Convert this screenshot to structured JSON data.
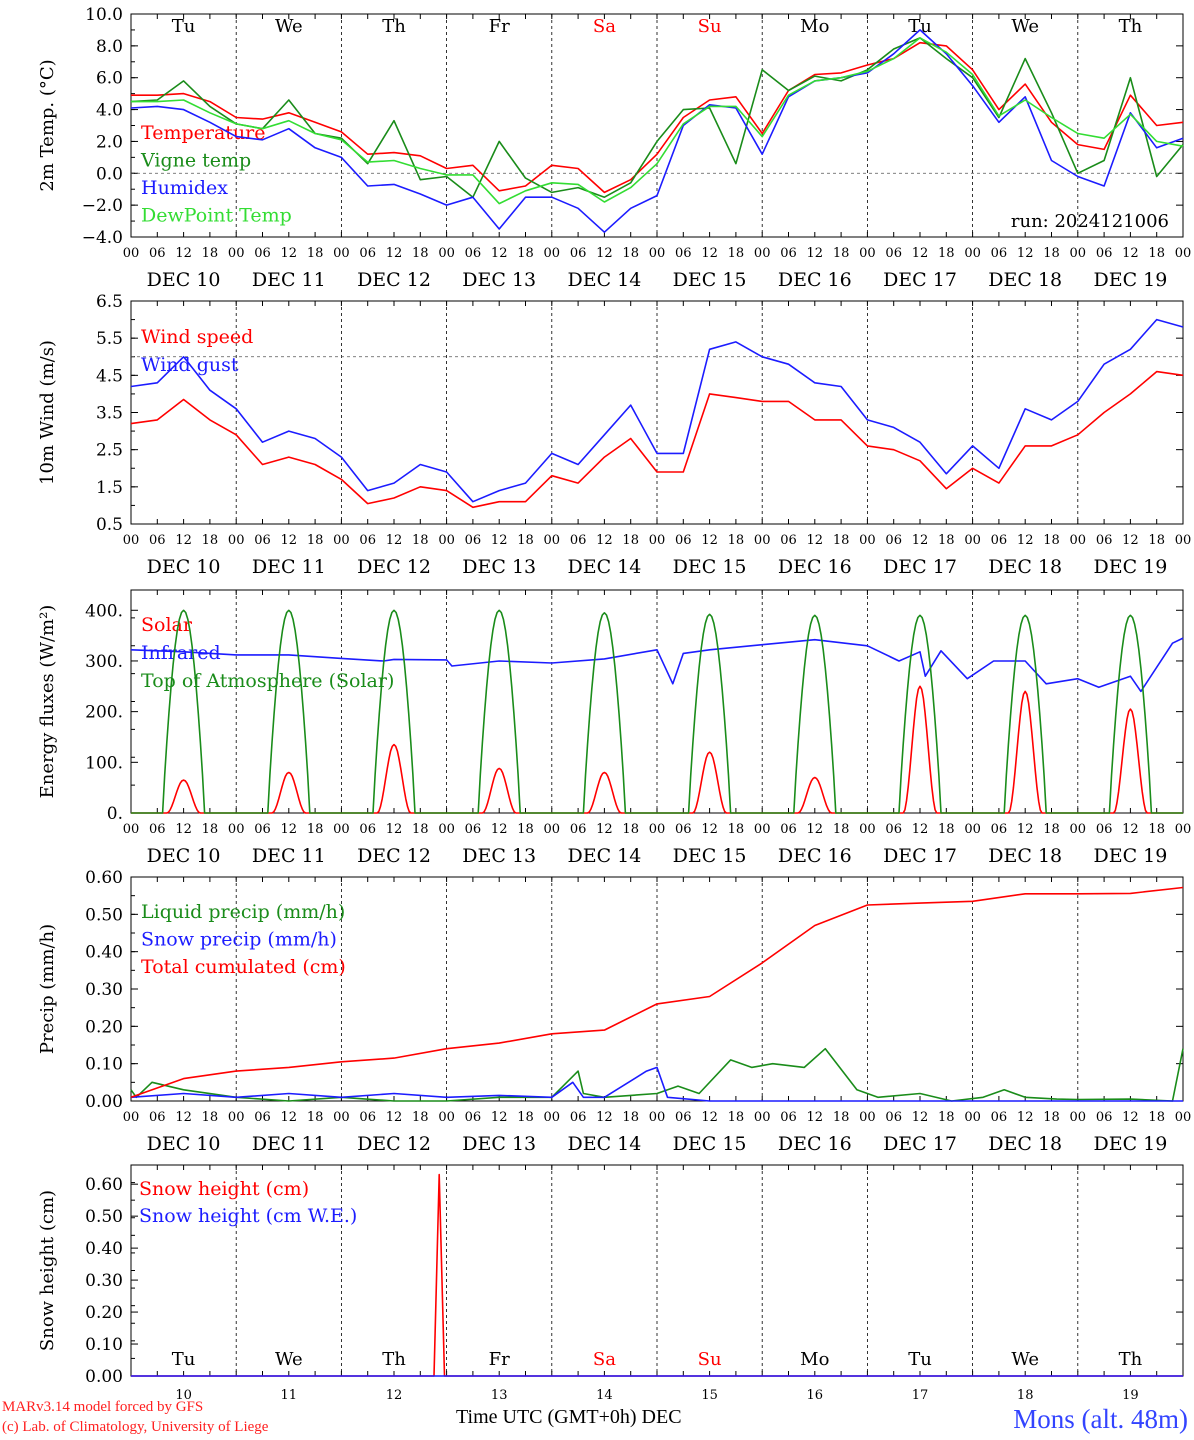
{
  "colors": {
    "red": "#ff0000",
    "green": "#1a8c1a",
    "blue": "#1c1cff",
    "lightgreen": "#33dd33",
    "grid": "#000000"
  },
  "days": [
    {
      "weekday": "Tu",
      "date": "DEC 10",
      "num": "10",
      "weekday_color": "#000000"
    },
    {
      "weekday": "We",
      "date": "DEC 11",
      "num": "11",
      "weekday_color": "#000000"
    },
    {
      "weekday": "Th",
      "date": "DEC 12",
      "num": "12",
      "weekday_color": "#000000"
    },
    {
      "weekday": "Fr",
      "date": "DEC 13",
      "num": "13",
      "weekday_color": "#000000"
    },
    {
      "weekday": "Sa",
      "date": "DEC 14",
      "num": "14",
      "weekday_color": "#ff0000"
    },
    {
      "weekday": "Su",
      "date": "DEC 15",
      "num": "15",
      "weekday_color": "#ff0000"
    },
    {
      "weekday": "Mo",
      "date": "DEC 16",
      "num": "16",
      "weekday_color": "#000000"
    },
    {
      "weekday": "Tu",
      "date": "DEC 17",
      "num": "17",
      "weekday_color": "#000000"
    },
    {
      "weekday": "We",
      "date": "DEC 18",
      "num": "18",
      "weekday_color": "#000000"
    },
    {
      "weekday": "Th",
      "date": "DEC 19",
      "num": "19",
      "weekday_color": "#000000"
    }
  ],
  "hour_ticks": [
    "00",
    "06",
    "12",
    "18"
  ],
  "footer": {
    "credit_line1": "MARv3.14 model forced by GFS",
    "credit_line2": "(c) Lab. of Climatology, University of Liege",
    "axis_label": "Time UTC (GMT+0h) DEC",
    "location": "Mons (alt. 48m)"
  },
  "chart_data": [
    {
      "type": "line",
      "ylabel": "2m Temp. (°C)",
      "ylim": [
        -4,
        10
      ],
      "yticks": [
        "10.0",
        "8.0",
        "6.0",
        "4.0",
        "2.0",
        "0.0",
        "−2.0",
        "−4.0"
      ],
      "ytick_values": [
        10,
        8,
        6,
        4,
        2,
        0,
        -2,
        -4
      ],
      "ref_line": 0,
      "annotation": "run: 2024121006",
      "x_unit": "day offset from DEC 10 00 UTC",
      "series": [
        {
          "name": "Temperature",
          "color": "#ff0000",
          "x": [
            0,
            0.25,
            0.5,
            0.75,
            1,
            1.25,
            1.5,
            1.75,
            2,
            2.25,
            2.5,
            2.75,
            3,
            3.25,
            3.5,
            3.75,
            4,
            4.25,
            4.5,
            4.75,
            5,
            5.25,
            5.5,
            5.75,
            6,
            6.25,
            6.5,
            6.75,
            7,
            7.25,
            7.5,
            7.75,
            8,
            8.25,
            8.5,
            8.75,
            9,
            9.25,
            9.5,
            9.75,
            10
          ],
          "y": [
            4.9,
            4.9,
            5,
            4.5,
            3.5,
            3.4,
            3.8,
            3.2,
            2.6,
            1.2,
            1.3,
            1.1,
            0.3,
            0.5,
            -1.1,
            -0.8,
            0.5,
            0.3,
            -1.2,
            -0.4,
            1.2,
            3.5,
            4.6,
            4.8,
            2.5,
            5.2,
            6.2,
            6.3,
            6.8,
            7.2,
            8.2,
            8,
            6.5,
            4,
            5.6,
            3.2,
            1.8,
            1.5,
            4.9,
            3,
            3.2
          ]
        },
        {
          "name": "Vigne temp",
          "color": "#1a8c1a",
          "x": [
            0,
            0.25,
            0.5,
            0.75,
            1,
            1.25,
            1.5,
            1.75,
            2,
            2.25,
            2.5,
            2.75,
            3,
            3.25,
            3.5,
            3.75,
            4,
            4.25,
            4.5,
            4.75,
            5,
            5.25,
            5.5,
            5.75,
            6,
            6.25,
            6.5,
            6.75,
            7,
            7.25,
            7.5,
            7.75,
            8,
            8.25,
            8.5,
            8.75,
            9,
            9.25,
            9.5,
            9.75,
            10
          ],
          "y": [
            4.5,
            4.6,
            5.8,
            4.2,
            3.1,
            2.8,
            4.6,
            2.5,
            2.2,
            0.6,
            3.3,
            -0.4,
            -0.2,
            -1.5,
            2,
            -0.3,
            -1.2,
            -0.9,
            -1.5,
            -0.6,
            2,
            4,
            4.1,
            0.6,
            6.5,
            5.2,
            6.1,
            5.8,
            6.5,
            7.8,
            8.5,
            7.2,
            6,
            3.5,
            7.2,
            3.8,
            0,
            0.8,
            6,
            -0.2,
            1.8
          ]
        },
        {
          "name": "Humidex",
          "color": "#1c1cff",
          "x": [
            0,
            0.25,
            0.5,
            0.75,
            1,
            1.25,
            1.5,
            1.75,
            2,
            2.25,
            2.5,
            2.75,
            3,
            3.25,
            3.5,
            3.75,
            4,
            4.25,
            4.5,
            4.75,
            5,
            5.25,
            5.5,
            5.75,
            6,
            6.25,
            6.5,
            6.75,
            7,
            7.25,
            7.5,
            7.75,
            8,
            8.25,
            8.5,
            8.75,
            9,
            9.25,
            9.5,
            9.75,
            10
          ],
          "y": [
            4.1,
            4.2,
            4,
            3.2,
            2.3,
            2.1,
            2.8,
            1.6,
            1,
            -0.8,
            -0.7,
            -1.3,
            -2,
            -1.5,
            -3.5,
            -1.5,
            -1.5,
            -2.2,
            -3.7,
            -2.2,
            -1.4,
            3,
            4.3,
            4.1,
            1.2,
            4.8,
            5.8,
            6,
            6.3,
            7.5,
            9,
            7.5,
            5.5,
            3.2,
            4.8,
            0.8,
            -0.2,
            -0.8,
            3.8,
            1.6,
            2.2
          ]
        },
        {
          "name": "DewPoint Temp",
          "color": "#33dd33",
          "x": [
            0,
            0.25,
            0.5,
            0.75,
            1,
            1.25,
            1.5,
            1.75,
            2,
            2.25,
            2.5,
            2.75,
            3,
            3.25,
            3.5,
            3.75,
            4,
            4.25,
            4.5,
            4.75,
            5,
            5.25,
            5.5,
            5.75,
            6,
            6.25,
            6.5,
            6.75,
            7,
            7.25,
            7.5,
            7.75,
            8,
            8.25,
            8.5,
            8.75,
            9,
            9.25,
            9.5,
            9.75,
            10
          ],
          "y": [
            4.5,
            4.5,
            4.6,
            3.8,
            3.1,
            2.8,
            3.3,
            2.5,
            2.1,
            0.7,
            0.8,
            0.3,
            -0.1,
            -0.1,
            -1.9,
            -1.1,
            -0.6,
            -0.7,
            -1.8,
            -0.9,
            0.6,
            3.1,
            4.2,
            4.2,
            2.3,
            4.9,
            5.8,
            6,
            6.4,
            7.2,
            8.5,
            7.6,
            6.2,
            3.6,
            4.6,
            3.5,
            2.5,
            2.2,
            3.7,
            2,
            1.7
          ]
        }
      ]
    },
    {
      "type": "line",
      "ylabel": "10m Wind (m/s)",
      "ylim": [
        0.5,
        6.5
      ],
      "yticks": [
        "6.5",
        "5.5",
        "4.5",
        "3.5",
        "2.5",
        "1.5",
        "0.5"
      ],
      "ytick_values": [
        6.5,
        5.5,
        4.5,
        3.5,
        2.5,
        1.5,
        0.5
      ],
      "ref_line": 5,
      "series": [
        {
          "name": "Wind speed",
          "color": "#ff0000",
          "x": [
            0,
            0.25,
            0.5,
            0.75,
            1,
            1.25,
            1.5,
            1.75,
            2,
            2.25,
            2.5,
            2.75,
            3,
            3.25,
            3.5,
            3.75,
            4,
            4.25,
            4.5,
            4.75,
            5,
            5.25,
            5.5,
            5.75,
            6,
            6.25,
            6.5,
            6.75,
            7,
            7.25,
            7.5,
            7.75,
            8,
            8.25,
            8.5,
            8.75,
            9,
            9.25,
            9.5,
            9.75,
            10
          ],
          "y": [
            3.2,
            3.3,
            3.85,
            3.3,
            2.9,
            2.1,
            2.3,
            2.1,
            1.7,
            1.05,
            1.2,
            1.5,
            1.4,
            0.95,
            1.1,
            1.1,
            1.8,
            1.6,
            2.3,
            2.8,
            1.9,
            1.9,
            4,
            3.9,
            3.8,
            3.8,
            3.3,
            3.3,
            2.6,
            2.5,
            2.2,
            1.45,
            2,
            1.6,
            2.6,
            2.6,
            2.9,
            3.5,
            4.0,
            4.6,
            4.5
          ]
        },
        {
          "name": "Wind gust",
          "color": "#1c1cff",
          "x": [
            0,
            0.25,
            0.5,
            0.75,
            1,
            1.25,
            1.5,
            1.75,
            2,
            2.25,
            2.5,
            2.75,
            3,
            3.25,
            3.5,
            3.75,
            4,
            4.25,
            4.5,
            4.75,
            5,
            5.25,
            5.5,
            5.75,
            6,
            6.25,
            6.5,
            6.75,
            7,
            7.25,
            7.5,
            7.75,
            8,
            8.25,
            8.5,
            8.75,
            9,
            9.25,
            9.5,
            9.75,
            10
          ],
          "y": [
            4.2,
            4.3,
            5,
            4.1,
            3.6,
            2.7,
            3,
            2.8,
            2.3,
            1.4,
            1.6,
            2.1,
            1.9,
            1.1,
            1.4,
            1.6,
            2.4,
            2.1,
            2.9,
            3.7,
            2.4,
            2.4,
            5.2,
            5.4,
            5,
            4.8,
            4.3,
            4.2,
            3.3,
            3.1,
            2.7,
            1.85,
            2.6,
            2.0,
            3.6,
            3.3,
            3.8,
            4.8,
            5.2,
            6.0,
            5.8
          ]
        }
      ]
    },
    {
      "type": "line",
      "ylabel": "Energy fluxes (W/m²)",
      "ylim": [
        0,
        440
      ],
      "yticks": [
        "400.",
        "300.",
        "200.",
        "100.",
        "0."
      ],
      "ytick_values": [
        400,
        300,
        200,
        100,
        0
      ],
      "series": [
        {
          "name": "Solar",
          "color": "#ff0000",
          "peaks": [
            65,
            80,
            135,
            88,
            80,
            120,
            70,
            250,
            240,
            205
          ]
        },
        {
          "name": "Infrared",
          "color": "#1c1cff",
          "x": [
            0,
            0.5,
            1,
            1.5,
            2,
            2.4,
            2.5,
            3,
            3.05,
            3.5,
            4,
            4.5,
            5,
            5.15,
            5.25,
            5.5,
            6,
            6.5,
            7,
            7.3,
            7.5,
            7.55,
            7.7,
            7.95,
            8.2,
            8.5,
            8.7,
            9,
            9.2,
            9.5,
            9.6,
            9.9,
            10
          ],
          "y": [
            322,
            318,
            312,
            312,
            305,
            300,
            303,
            302,
            290,
            300,
            296,
            304,
            322,
            255,
            315,
            322,
            332,
            342,
            330,
            300,
            318,
            270,
            320,
            265,
            300,
            300,
            255,
            265,
            248,
            270,
            240,
            335,
            345
          ]
        },
        {
          "name": "Top of Atmosphere (Solar)",
          "color": "#1a8c1a",
          "peaks": [
            400,
            400,
            400,
            400,
            395,
            392,
            390,
            390,
            390,
            390
          ]
        }
      ]
    },
    {
      "type": "line",
      "ylabel": "Precip (mm/h)",
      "ylim": [
        0,
        0.6
      ],
      "yticks": [
        "0.60",
        "0.50",
        "0.40",
        "0.30",
        "0.20",
        "0.10",
        "0.00"
      ],
      "ytick_values": [
        0.6,
        0.5,
        0.4,
        0.3,
        0.2,
        0.1,
        0
      ],
      "series": [
        {
          "name": "Liquid precip (mm/h)",
          "color": "#1a8c1a",
          "x": [
            0,
            0.05,
            0.2,
            0.5,
            1,
            1.5,
            2,
            2.5,
            3,
            3.5,
            4,
            4.25,
            4.3,
            4.5,
            5,
            5.2,
            5.4,
            5.7,
            5.9,
            6.1,
            6.4,
            6.6,
            6.9,
            7.1,
            7.5,
            7.8,
            8.1,
            8.3,
            8.5,
            8.8,
            9,
            9.5,
            9.9,
            10
          ],
          "y": [
            0.03,
            0.01,
            0.05,
            0.03,
            0.01,
            0,
            0.01,
            0,
            0,
            0.01,
            0.01,
            0.08,
            0.02,
            0.01,
            0.02,
            0.04,
            0.02,
            0.11,
            0.09,
            0.1,
            0.09,
            0.14,
            0.03,
            0.01,
            0.02,
            0,
            0.01,
            0.03,
            0.01,
            0.005,
            0.004,
            0.005,
            0,
            0.14
          ]
        },
        {
          "name": "Snow precip (mm/h)",
          "color": "#1c1cff",
          "x": [
            0,
            0.5,
            1,
            1.5,
            2,
            2.5,
            3,
            3.5,
            4,
            4.2,
            4.3,
            4.5,
            4.9,
            5,
            5.1,
            5.5,
            6,
            10
          ],
          "y": [
            0.01,
            0.02,
            0.01,
            0.02,
            0.01,
            0.02,
            0.01,
            0.015,
            0.01,
            0.05,
            0.01,
            0.01,
            0.08,
            0.09,
            0.01,
            0,
            0,
            0
          ]
        },
        {
          "name": "Total cumulated (cm)",
          "color": "#ff0000",
          "x": [
            0,
            0.5,
            1,
            1.5,
            2,
            2.5,
            3,
            3.5,
            4,
            4.5,
            5,
            5.5,
            6,
            6.5,
            7,
            7.5,
            8,
            8.5,
            9,
            9.5,
            10
          ],
          "y": [
            0.01,
            0.06,
            0.08,
            0.09,
            0.105,
            0.115,
            0.14,
            0.155,
            0.18,
            0.19,
            0.26,
            0.28,
            0.37,
            0.47,
            0.525,
            0.53,
            0.535,
            0.555,
            0.555,
            0.556,
            0.572
          ]
        }
      ]
    },
    {
      "type": "line",
      "ylabel": "Snow height (cm)",
      "ylim": [
        0,
        0.66
      ],
      "yticks": [
        "0.60",
        "0.50",
        "0.40",
        "0.30",
        "0.20",
        "0.10",
        "0.00"
      ],
      "ytick_values": [
        0.6,
        0.5,
        0.4,
        0.3,
        0.2,
        0.1,
        0
      ],
      "series": [
        {
          "name": "Snow height (cm)",
          "color": "#ff0000",
          "x": [
            0,
            2.88,
            2.93,
            2.98,
            10
          ],
          "y": [
            0,
            0,
            0.63,
            0,
            0
          ]
        },
        {
          "name": "Snow height (cm W.E.)",
          "color": "#1c1cff",
          "x": [
            0,
            10
          ],
          "y": [
            0,
            0
          ]
        }
      ]
    }
  ]
}
